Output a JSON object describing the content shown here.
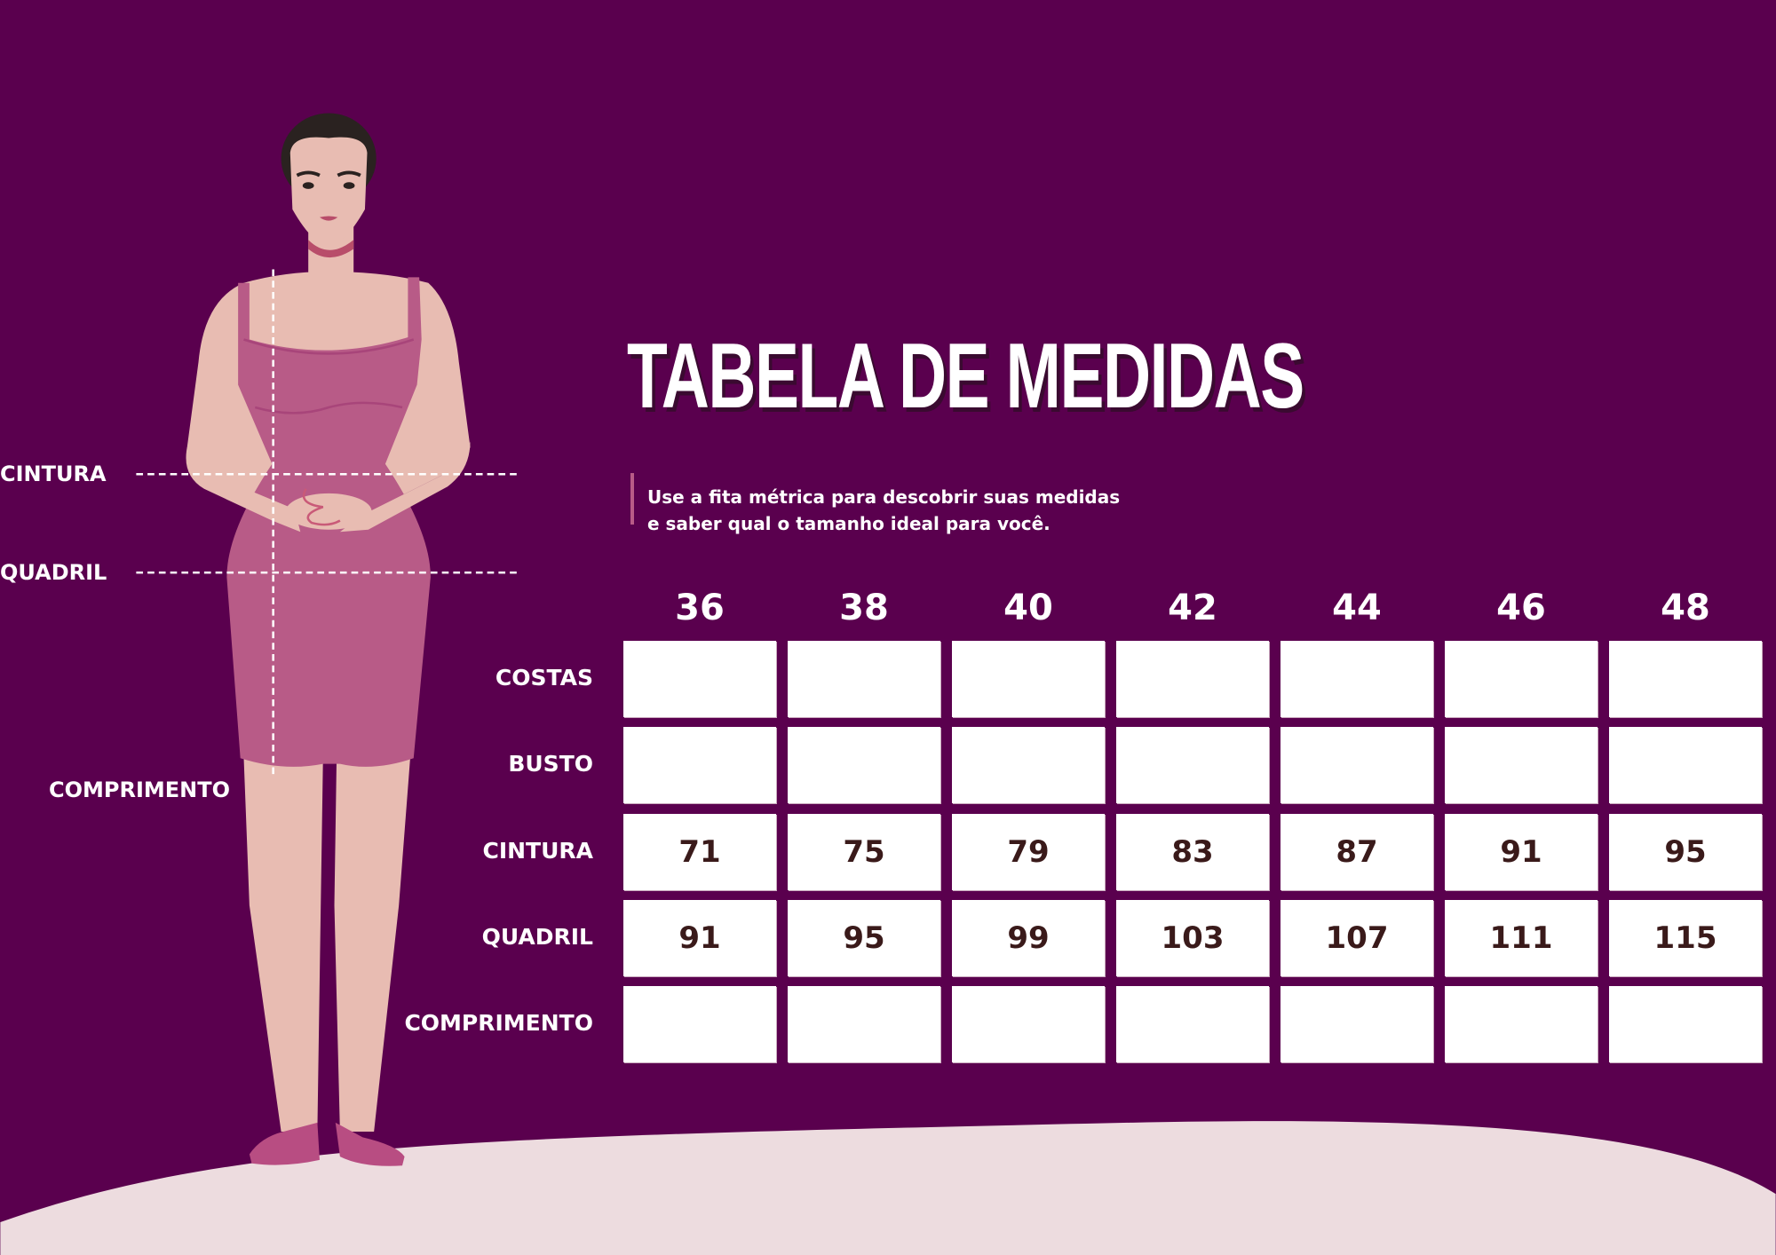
{
  "colors": {
    "background": "#5a004e",
    "accent": "#b85b87",
    "skin": "#e8bcb2",
    "ground": "#eddcdf",
    "cell_text": "#3a1a1a"
  },
  "title": "TABELA DE MEDIDAS",
  "subtitle": [
    "Use a fita métrica para descobrir suas medidas",
    "e saber qual o tamanho ideal para você."
  ],
  "figure_labels": {
    "waist": "CINTURA",
    "hip": "QUADRIL",
    "length": "COMPRIMENTO"
  },
  "table": {
    "sizes": [
      "36",
      "38",
      "40",
      "42",
      "44",
      "46",
      "48"
    ],
    "rows": [
      {
        "label": "COSTAS",
        "values": [
          "",
          "",
          "",
          "",
          "",
          "",
          ""
        ]
      },
      {
        "label": "BUSTO",
        "values": [
          "",
          "",
          "",
          "",
          "",
          "",
          ""
        ]
      },
      {
        "label": "CINTURA",
        "values": [
          "71",
          "75",
          "79",
          "83",
          "87",
          "91",
          "95"
        ]
      },
      {
        "label": "QUADRIL",
        "values": [
          "91",
          "95",
          "99",
          "103",
          "107",
          "111",
          "115"
        ]
      },
      {
        "label": "COMPRIMENTO",
        "values": [
          "",
          "",
          "",
          "",
          "",
          "",
          ""
        ]
      }
    ]
  }
}
